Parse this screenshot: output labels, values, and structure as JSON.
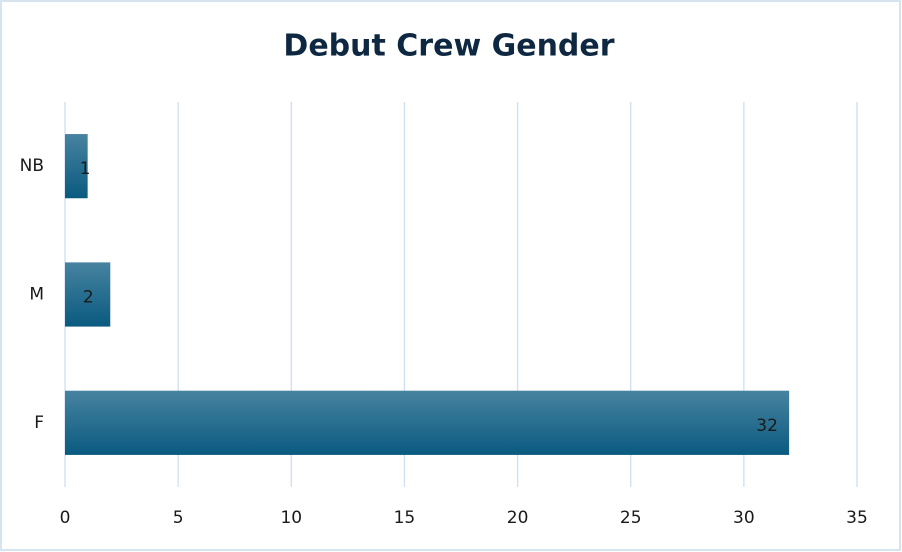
{
  "chart_data": {
    "type": "hbar",
    "title": "Debut Crew Gender",
    "categories": [
      "F",
      "M",
      "NB"
    ],
    "values": [
      32,
      2,
      1
    ],
    "color": "#0a5a80",
    "xlim": [
      0,
      35
    ],
    "xticks": [
      0,
      5,
      10,
      15,
      20,
      25,
      30,
      35
    ],
    "grid": true,
    "data_labels": true
  }
}
